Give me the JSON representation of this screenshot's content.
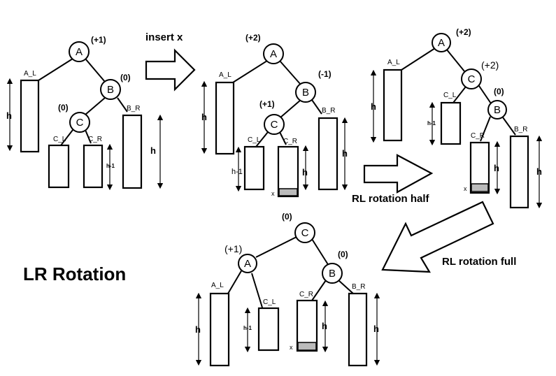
{
  "title": "LR Rotation",
  "ops": {
    "insert": "insert x",
    "half": "RL rotation half",
    "full": "RL rotation full"
  },
  "nodes": {
    "a": "A",
    "b": "B",
    "c": "C"
  },
  "subtrees": {
    "al": "A_L",
    "br": "B_R",
    "cl": "C_L",
    "cr": "C_R"
  },
  "heights": {
    "h": "h",
    "h_minus_1": "h-1"
  },
  "inserted": "x",
  "balance": {
    "t1": {
      "a": "(+1)",
      "b": "(0)",
      "c": "(0)"
    },
    "t2": {
      "a": "(+2)",
      "b": "(-1)",
      "c": "(+1)"
    },
    "t3": {
      "a": "(+2)",
      "c": "(+2)",
      "b": "(0)"
    },
    "t4": {
      "c": "(0)",
      "a": "(+1)",
      "b": "(0)"
    }
  }
}
